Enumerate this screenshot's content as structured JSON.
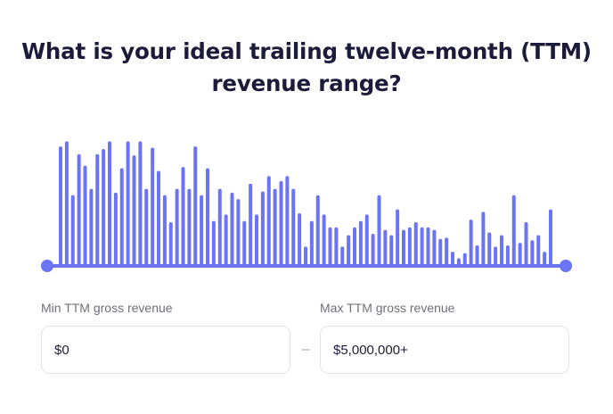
{
  "question": {
    "line1": "What is your ideal trailing twelve-month (TTM)",
    "line2": "revenue range?"
  },
  "colors": {
    "accent": "#6b73f7",
    "title": "#1c1c3a",
    "label": "#6f6f7b",
    "field_border": "#e3e3e8"
  },
  "slider": {
    "min_fraction": 0,
    "max_fraction": 1
  },
  "min_field": {
    "label": "Min TTM gross revenue",
    "value": "$0"
  },
  "separator": "–",
  "max_field": {
    "label": "Max TTM gross revenue",
    "value": "$5,000,000+"
  },
  "chart_data": {
    "type": "bar",
    "title": "",
    "xlabel": "",
    "ylabel": "",
    "ylim": [
      0,
      1
    ],
    "values": [
      0.93,
      0.97,
      0.55,
      0.87,
      0.78,
      0.6,
      0.87,
      0.91,
      0.97,
      0.57,
      0.76,
      0.97,
      0.86,
      0.97,
      0.6,
      0.92,
      0.74,
      0.55,
      0.34,
      0.6,
      0.77,
      0.6,
      0.93,
      0.55,
      0.76,
      0.35,
      0.6,
      0.4,
      0.57,
      0.52,
      0.35,
      0.64,
      0.4,
      0.58,
      0.7,
      0.6,
      0.66,
      0.7,
      0.6,
      0.41,
      0.15,
      0.35,
      0.55,
      0.4,
      0.3,
      0.3,
      0.15,
      0.24,
      0.3,
      0.35,
      0.4,
      0.25,
      0.55,
      0.28,
      0.24,
      0.44,
      0.28,
      0.3,
      0.34,
      0.3,
      0.3,
      0.28,
      0.21,
      0.22,
      0.11,
      0.06,
      0.1,
      0.36,
      0.16,
      0.42,
      0.26,
      0.15,
      0.24,
      0.16,
      0.55,
      0.18,
      0.34,
      0.2,
      0.24,
      0.11,
      0.44
    ]
  }
}
